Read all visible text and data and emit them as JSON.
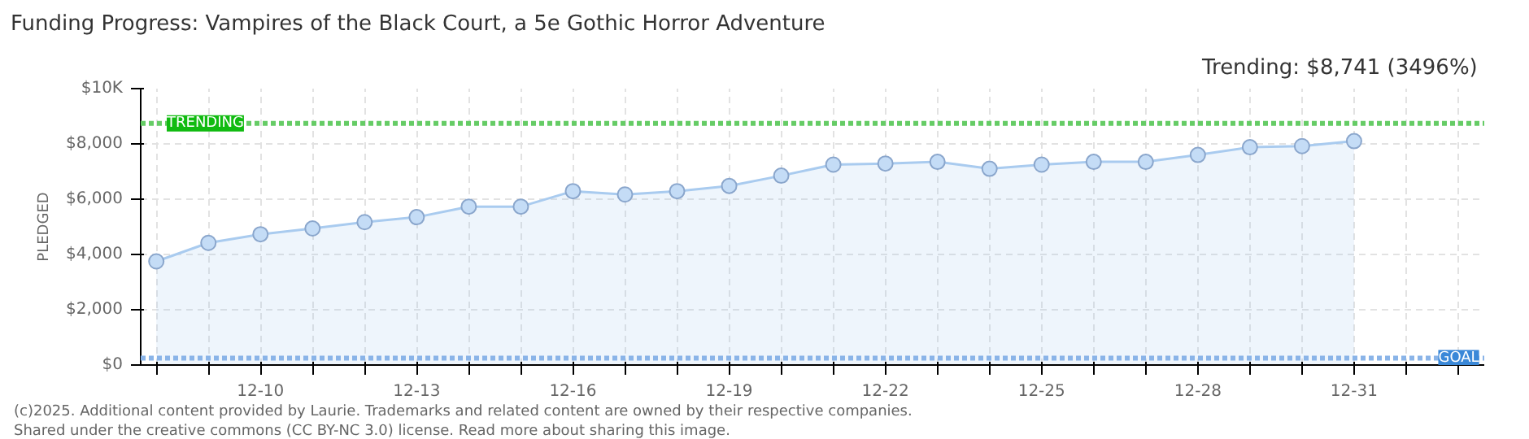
{
  "chart_data": {
    "type": "area",
    "title": "Funding Progress: Vampires of the Black Court, a 5e Gothic Horror Adventure",
    "subtitle": "Trending:  $8,741 (3496%)",
    "ylabel": "PLEDGED",
    "categories": [
      null,
      null,
      "12-10",
      null,
      null,
      "12-13",
      null,
      null,
      "12-16",
      null,
      null,
      "12-19",
      null,
      null,
      "12-22",
      null,
      null,
      "12-25",
      null,
      null,
      "12-28",
      null,
      null,
      "12-31",
      null,
      null
    ],
    "series": [
      {
        "color": "#a9cbef",
        "values": [
          3750,
          4420,
          4730,
          4940,
          5170,
          5350,
          5730,
          5730,
          6290,
          6170,
          6290,
          6480,
          6850,
          7250,
          7290,
          7350,
          7100,
          7250,
          7350,
          7350,
          7600,
          7880,
          7920,
          8100,
          null,
          null
        ]
      }
    ],
    "ylim": [
      0,
      10000
    ],
    "yticks": [
      {
        "value": 0,
        "label": "$0"
      },
      {
        "value": 2000,
        "label": "$2,000"
      },
      {
        "value": 4000,
        "label": "$4,000"
      },
      {
        "value": 6000,
        "label": "$6,000"
      },
      {
        "value": 8000,
        "label": "$8,000"
      },
      {
        "value": 10000,
        "label": "$10K"
      }
    ],
    "grid": true,
    "marker": "circle",
    "ref_lines": [
      {
        "axis": "y",
        "value": 8741,
        "label": "TRENDING",
        "color": "#66cc66",
        "line_style": "dotted"
      },
      {
        "axis": "y",
        "value": 250,
        "label": "GOAL",
        "color": "#8ab4e8",
        "line_style": "dotted"
      }
    ],
    "annotations": [
      "(c)2025. Additional content provided by Laurie. Trademarks and related content are owned by their respective companies.",
      "Shared under the creative commons (CC BY-NC 3.0) license. Read more about sharing this image."
    ]
  }
}
